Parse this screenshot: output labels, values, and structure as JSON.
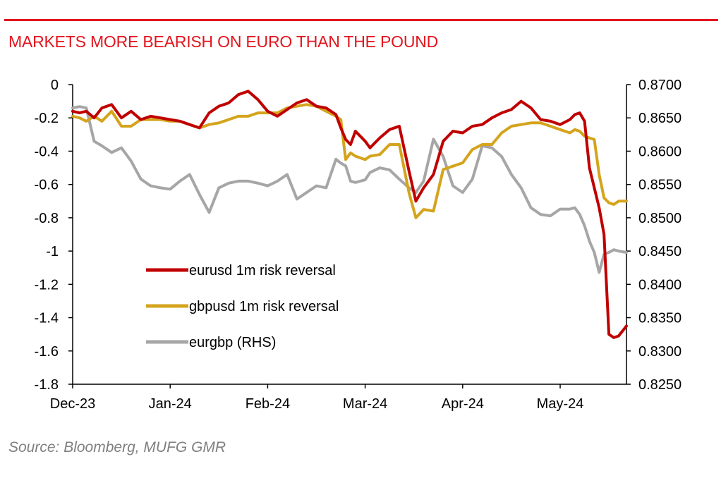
{
  "chart_data": {
    "type": "line",
    "title": "MARKETS MORE BEARISH ON EURO THAN THE POUND",
    "source": "Source: Bloomberg, MUFG GMR",
    "colors": {
      "accent": "#e3141e",
      "eurusd": "#c00000",
      "gbpusd": "#d4a41c",
      "eurgbp": "#a6a6a6"
    },
    "x_axis": {
      "min": 0,
      "max": 5.68,
      "ticks": [
        {
          "value": 0,
          "label": "Dec-23"
        },
        {
          "value": 1,
          "label": "Jan-24"
        },
        {
          "value": 2,
          "label": "Feb-24"
        },
        {
          "value": 3,
          "label": "Mar-24"
        },
        {
          "value": 4,
          "label": "Apr-24"
        },
        {
          "value": 5,
          "label": "May-24"
        }
      ]
    },
    "y_left": {
      "min": -1.8,
      "max": 0,
      "ticks": [
        {
          "value": 0,
          "label": "0"
        },
        {
          "value": -0.2,
          "label": "-0.2"
        },
        {
          "value": -0.4,
          "label": "-0.4"
        },
        {
          "value": -0.6,
          "label": "-0.6"
        },
        {
          "value": -0.8,
          "label": "-0.8"
        },
        {
          "value": -1.0,
          "label": "-1"
        },
        {
          "value": -1.2,
          "label": "-1.2"
        },
        {
          "value": -1.4,
          "label": "-1.4"
        },
        {
          "value": -1.6,
          "label": "-1.6"
        },
        {
          "value": -1.8,
          "label": "-1.8"
        }
      ]
    },
    "y_right": {
      "min": 0.825,
      "max": 0.87,
      "ticks": [
        {
          "value": 0.87,
          "label": "0.8700"
        },
        {
          "value": 0.865,
          "label": "0.8650"
        },
        {
          "value": 0.86,
          "label": "0.8600"
        },
        {
          "value": 0.855,
          "label": "0.8550"
        },
        {
          "value": 0.85,
          "label": "0.8500"
        },
        {
          "value": 0.845,
          "label": "0.8450"
        },
        {
          "value": 0.84,
          "label": "0.8400"
        },
        {
          "value": 0.835,
          "label": "0.8350"
        },
        {
          "value": 0.83,
          "label": "0.8300"
        },
        {
          "value": 0.825,
          "label": "0.8250"
        }
      ]
    },
    "series": [
      {
        "name": "eurusd 1m risk reversal",
        "axis": "left",
        "color": "#c00000",
        "x": [
          0,
          0.07,
          0.14,
          0.22,
          0.3,
          0.4,
          0.5,
          0.6,
          0.7,
          0.8,
          0.9,
          1.0,
          1.1,
          1.2,
          1.3,
          1.4,
          1.5,
          1.6,
          1.7,
          1.8,
          1.9,
          2.0,
          2.1,
          2.2,
          2.3,
          2.4,
          2.5,
          2.6,
          2.7,
          2.75,
          2.8,
          2.85,
          2.9,
          3.0,
          3.05,
          3.15,
          3.25,
          3.35,
          3.45,
          3.52,
          3.6,
          3.7,
          3.8,
          3.9,
          4.0,
          4.1,
          4.2,
          4.3,
          4.4,
          4.5,
          4.6,
          4.7,
          4.8,
          4.9,
          5.0,
          5.1,
          5.15,
          5.2,
          5.25,
          5.3,
          5.35,
          5.4,
          5.45,
          5.5,
          5.55,
          5.6,
          5.68
        ],
        "values": [
          -0.16,
          -0.17,
          -0.16,
          -0.2,
          -0.14,
          -0.12,
          -0.2,
          -0.16,
          -0.21,
          -0.19,
          -0.2,
          -0.21,
          -0.22,
          -0.24,
          -0.26,
          -0.17,
          -0.13,
          -0.11,
          -0.06,
          -0.04,
          -0.09,
          -0.16,
          -0.19,
          -0.15,
          -0.11,
          -0.09,
          -0.13,
          -0.14,
          -0.18,
          -0.26,
          -0.33,
          -0.36,
          -0.28,
          -0.34,
          -0.38,
          -0.32,
          -0.27,
          -0.25,
          -0.52,
          -0.7,
          -0.62,
          -0.54,
          -0.34,
          -0.28,
          -0.29,
          -0.25,
          -0.24,
          -0.2,
          -0.17,
          -0.15,
          -0.1,
          -0.14,
          -0.21,
          -0.22,
          -0.24,
          -0.21,
          -0.18,
          -0.17,
          -0.22,
          -0.5,
          -0.62,
          -0.74,
          -0.9,
          -1.5,
          -1.52,
          -1.51,
          -1.45
        ]
      },
      {
        "name": "gbpusd 1m risk reversal",
        "axis": "left",
        "color": "#d4a41c",
        "x": [
          0,
          0.07,
          0.14,
          0.22,
          0.3,
          0.4,
          0.5,
          0.6,
          0.7,
          0.8,
          0.9,
          1.0,
          1.1,
          1.2,
          1.3,
          1.4,
          1.5,
          1.6,
          1.7,
          1.8,
          1.9,
          2.0,
          2.1,
          2.2,
          2.3,
          2.4,
          2.5,
          2.6,
          2.7,
          2.75,
          2.8,
          2.85,
          2.9,
          3.0,
          3.05,
          3.15,
          3.25,
          3.35,
          3.45,
          3.52,
          3.6,
          3.7,
          3.8,
          3.9,
          4.0,
          4.1,
          4.2,
          4.3,
          4.4,
          4.5,
          4.6,
          4.7,
          4.8,
          4.9,
          5.0,
          5.1,
          5.15,
          5.2,
          5.25,
          5.3,
          5.35,
          5.4,
          5.45,
          5.5,
          5.55,
          5.6,
          5.68
        ],
        "values": [
          -0.19,
          -0.2,
          -0.22,
          -0.19,
          -0.22,
          -0.16,
          -0.25,
          -0.25,
          -0.21,
          -0.21,
          -0.21,
          -0.22,
          -0.22,
          -0.24,
          -0.26,
          -0.24,
          -0.23,
          -0.21,
          -0.19,
          -0.19,
          -0.17,
          -0.17,
          -0.17,
          -0.14,
          -0.13,
          -0.12,
          -0.13,
          -0.16,
          -0.19,
          -0.21,
          -0.45,
          -0.41,
          -0.43,
          -0.45,
          -0.43,
          -0.42,
          -0.36,
          -0.36,
          -0.65,
          -0.8,
          -0.75,
          -0.76,
          -0.51,
          -0.49,
          -0.47,
          -0.39,
          -0.36,
          -0.36,
          -0.29,
          -0.25,
          -0.24,
          -0.23,
          -0.23,
          -0.25,
          -0.27,
          -0.29,
          -0.27,
          -0.28,
          -0.31,
          -0.32,
          -0.33,
          -0.54,
          -0.68,
          -0.71,
          -0.72,
          -0.7,
          -0.7
        ]
      },
      {
        "name": "eurgbp (RHS)",
        "axis": "right",
        "color": "#a6a6a6",
        "x": [
          0,
          0.07,
          0.14,
          0.22,
          0.3,
          0.4,
          0.5,
          0.6,
          0.7,
          0.8,
          0.9,
          1.0,
          1.1,
          1.2,
          1.3,
          1.4,
          1.5,
          1.6,
          1.7,
          1.8,
          1.9,
          2.0,
          2.1,
          2.2,
          2.3,
          2.4,
          2.5,
          2.6,
          2.7,
          2.75,
          2.8,
          2.85,
          2.9,
          3.0,
          3.05,
          3.15,
          3.25,
          3.35,
          3.45,
          3.52,
          3.6,
          3.7,
          3.8,
          3.9,
          4.0,
          4.1,
          4.2,
          4.3,
          4.4,
          4.5,
          4.6,
          4.7,
          4.8,
          4.9,
          5.0,
          5.1,
          5.15,
          5.2,
          5.25,
          5.3,
          5.35,
          5.4,
          5.45,
          5.5,
          5.55,
          5.6,
          5.68
        ],
        "values": [
          0.8665,
          0.8667,
          0.8665,
          0.8615,
          0.8608,
          0.8598,
          0.8605,
          0.8585,
          0.8558,
          0.8548,
          0.8545,
          0.8543,
          0.8555,
          0.8565,
          0.8535,
          0.8508,
          0.8545,
          0.8552,
          0.8555,
          0.8555,
          0.8552,
          0.8548,
          0.8555,
          0.8565,
          0.8528,
          0.8538,
          0.8548,
          0.8545,
          0.8588,
          0.8582,
          0.8578,
          0.8555,
          0.8553,
          0.8557,
          0.8568,
          0.8575,
          0.8572,
          0.8558,
          0.8545,
          0.8538,
          0.8555,
          0.8618,
          0.8592,
          0.8548,
          0.8538,
          0.8558,
          0.8608,
          0.8605,
          0.8592,
          0.8565,
          0.8545,
          0.8515,
          0.8505,
          0.8503,
          0.8513,
          0.8513,
          0.8515,
          0.8505,
          0.8488,
          0.8465,
          0.8448,
          0.8418,
          0.8445,
          0.8448,
          0.8452,
          0.845,
          0.8448
        ]
      }
    ],
    "legend": {
      "placement": "center-left",
      "entries": [
        {
          "label": "eurusd 1m risk reversal",
          "color": "#c00000"
        },
        {
          "label": "gbpusd 1m risk reversal",
          "color": "#d4a41c"
        },
        {
          "label": "eurgbp (RHS)",
          "color": "#a6a6a6"
        }
      ]
    },
    "grid": false
  }
}
